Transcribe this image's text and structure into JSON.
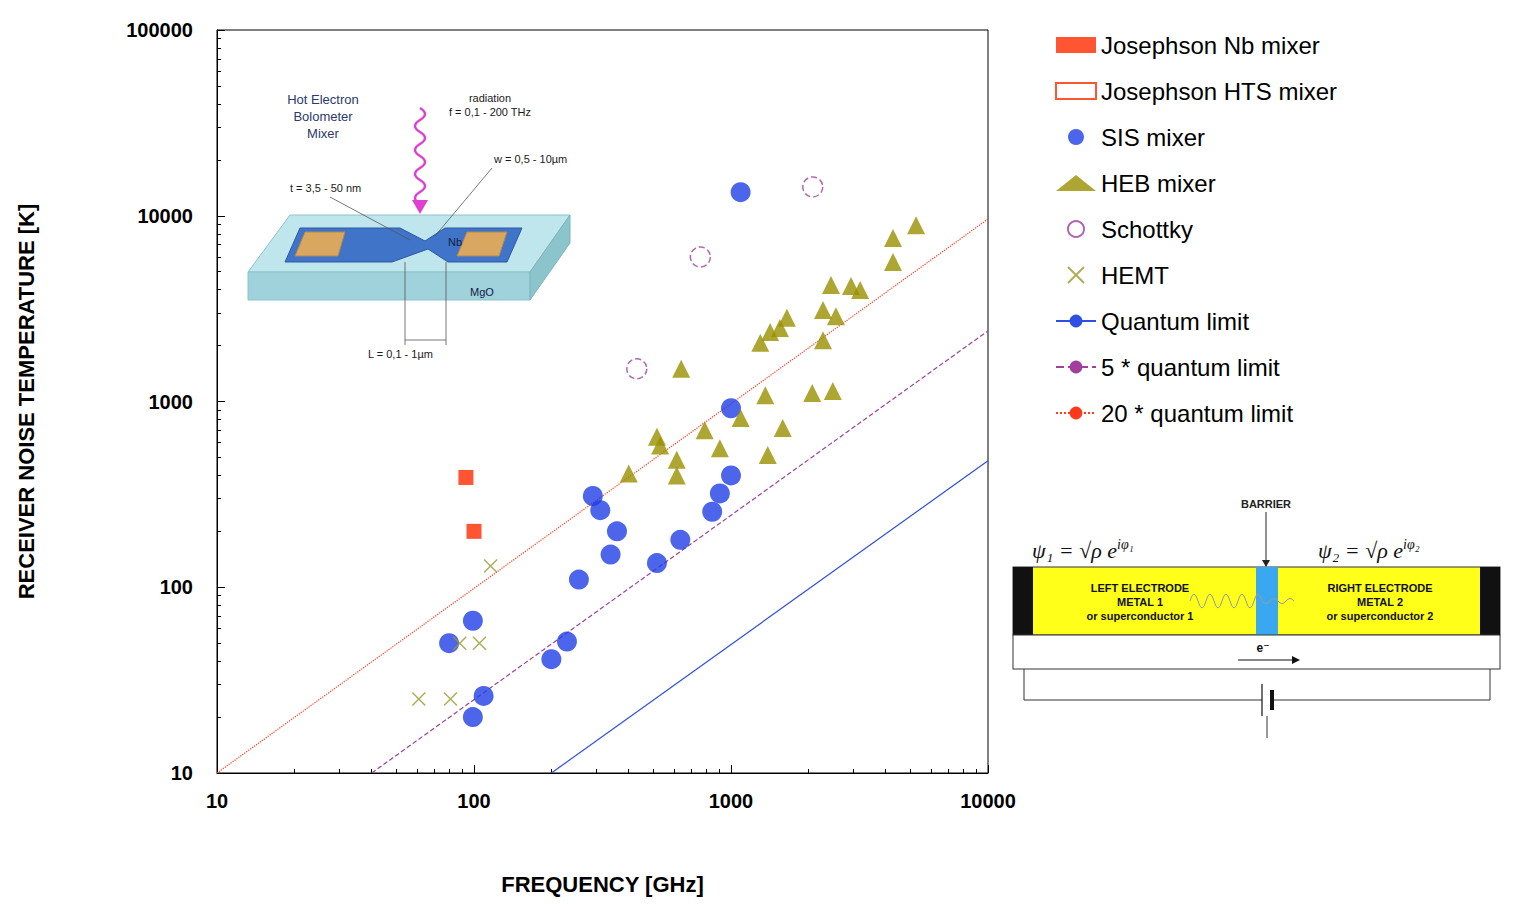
{
  "chart_data": {
    "type": "scatter",
    "x_label": "FREQUENCY [GHz]",
    "y_label": "RECEIVER NOISE TEMPERATURE [K]",
    "log": true,
    "grid": false,
    "legend": "right",
    "xlim": [
      10,
      10000
    ],
    "xticks": [
      10,
      100,
      1000,
      10000
    ],
    "ylim": [
      10,
      100000
    ],
    "yticks": [
      10,
      100,
      1000,
      10000,
      100000
    ],
    "series": [
      {
        "name": "Josephson Nb mixer",
        "type": "scatter",
        "marker": "square",
        "color": "#ff2a00",
        "x": [
          93,
          100
        ],
        "values": [
          390,
          200
        ]
      },
      {
        "name": "Josephson HTS mixer",
        "type": "scatter",
        "marker": "square_open",
        "color": "#ff2a00",
        "x": [],
        "values": []
      },
      {
        "name": "SIS mixer",
        "type": "scatter",
        "marker": "circle",
        "color": "#1f3fe6",
        "x": [
          80,
          99,
          99,
          109,
          200,
          230,
          256,
          290,
          310,
          340,
          360,
          515,
          635,
          845,
          905,
          1000,
          1000,
          1090
        ],
        "values": [
          50,
          66,
          20,
          26,
          41,
          51,
          110,
          310,
          260,
          150,
          200,
          135,
          180,
          255,
          320,
          400,
          920,
          13400
        ]
      },
      {
        "name": "HEB mixer",
        "type": "scatter",
        "marker": "triangle",
        "color": "#9a9000",
        "x": [
          400,
          515,
          530,
          615,
          615,
          640,
          790,
          905,
          1090,
          1300,
          1360,
          1390,
          1420,
          1590,
          1650,
          1550,
          2070,
          2280,
          2280,
          2490,
          2450,
          2560,
          2930,
          3180,
          4270,
          4270,
          5250
        ],
        "values": [
          410,
          645,
          580,
          485,
          400,
          1500,
          700,
          560,
          815,
          2070,
          1080,
          515,
          2370,
          720,
          2820,
          2490,
          1110,
          2140,
          3110,
          1140,
          4240,
          2880,
          4190,
          3980,
          5640,
          7590,
          8900
        ]
      },
      {
        "name": "Schottky",
        "type": "scatter",
        "marker": "circle_open",
        "color": "#a0409c",
        "x": [
          430,
          760,
          2080
        ],
        "values": [
          1500,
          6000,
          14300
        ]
      },
      {
        "name": "HEMT",
        "type": "scatter",
        "marker": "cross",
        "color": "#9a9a30",
        "x": [
          61,
          81,
          88,
          105,
          116
        ],
        "values": [
          25,
          25,
          50,
          50,
          130
        ]
      },
      {
        "name": "Quantum limit",
        "type": "line",
        "line_style": "solid",
        "color": "#2f4fe0",
        "x": [
          200,
          10000
        ],
        "values": [
          10,
          480
        ]
      },
      {
        "name": "5 * quantum limit",
        "type": "line",
        "line_style": "dashed",
        "color": "#a0409c",
        "x": [
          40,
          10000
        ],
        "values": [
          10,
          2400
        ]
      },
      {
        "name": "20 * quantum limit",
        "type": "line",
        "line_style": "dotted",
        "color": "#ff3a1a",
        "x": [
          10,
          10000
        ],
        "values": [
          10,
          9600
        ]
      }
    ]
  },
  "insets": {
    "heb": {
      "title": [
        "Hot Electron",
        "Bolometer",
        "Mixer"
      ],
      "radiation": [
        "radiation",
        "f = 0,1 - 200 THz"
      ],
      "width": "w = 0,5 - 10µm",
      "thickness": "t = 3,5 - 50 nm",
      "film": "Nb",
      "substrate": "MgO",
      "length": "L = 0,1 - 1µm"
    },
    "junction": {
      "barrier": "BARRIER",
      "psi1": {
        "base": "ψ₁ = √ρ e",
        "sup": "iφ₁"
      },
      "psi2": {
        "base": "ψ₂ = √ρ e",
        "sup": "iφ₂"
      },
      "left": [
        "LEFT ELECTRODE",
        "METAL 1",
        "or superconductor 1"
      ],
      "right": [
        "RIGHT ELECTRODE",
        "METAL 2",
        "or superconductor 2"
      ],
      "electron": "e⁻"
    }
  }
}
